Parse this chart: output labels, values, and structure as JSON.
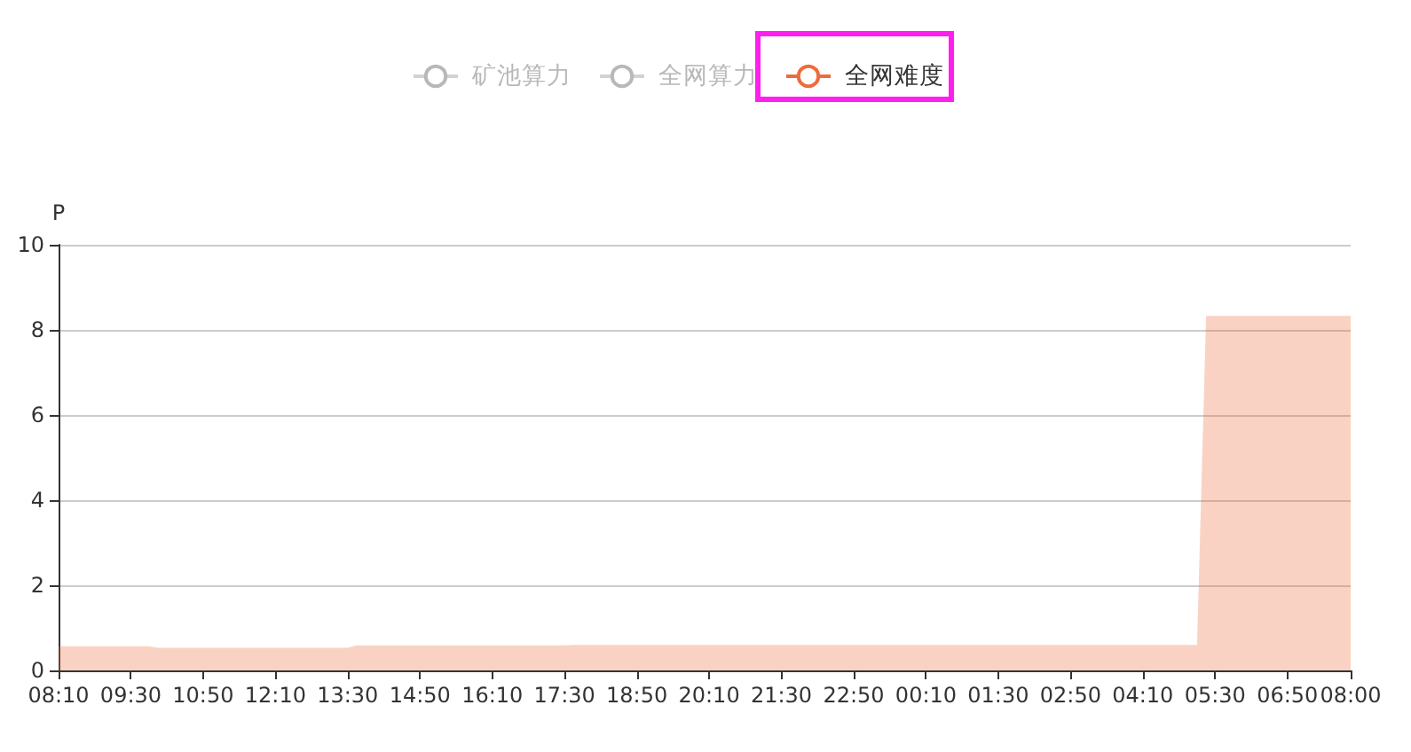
{
  "chart_data": {
    "type": "area",
    "ylabel": "P",
    "legend": "top",
    "grid": "y",
    "marker": "none",
    "categories": [
      "08:10",
      null,
      null,
      null,
      null,
      null,
      null,
      null,
      "09:30",
      null,
      null,
      null,
      null,
      null,
      null,
      null,
      "10:50",
      null,
      null,
      null,
      null,
      null,
      null,
      null,
      "12:10",
      null,
      null,
      null,
      null,
      null,
      null,
      null,
      "13:30",
      null,
      null,
      null,
      null,
      null,
      null,
      null,
      "14:50",
      null,
      null,
      null,
      null,
      null,
      null,
      null,
      "16:10",
      null,
      null,
      null,
      null,
      null,
      null,
      null,
      "17:30",
      null,
      null,
      null,
      null,
      null,
      null,
      null,
      "18:50",
      null,
      null,
      null,
      null,
      null,
      null,
      null,
      "20:10",
      null,
      null,
      null,
      null,
      null,
      null,
      null,
      "21:30",
      null,
      null,
      null,
      null,
      null,
      null,
      null,
      "22:50",
      null,
      null,
      null,
      null,
      null,
      null,
      null,
      "00:10",
      null,
      null,
      null,
      null,
      null,
      null,
      null,
      "01:30",
      null,
      null,
      null,
      null,
      null,
      null,
      null,
      "02:50",
      null,
      null,
      null,
      null,
      null,
      null,
      null,
      "04:10",
      null,
      null,
      null,
      null,
      null,
      null,
      null,
      "05:30",
      null,
      null,
      null,
      null,
      null,
      null,
      null,
      "06:50",
      null,
      null,
      null,
      null,
      null,
      null,
      "08:00"
    ],
    "ylim": [
      0,
      10
    ],
    "yticks": [
      0,
      2,
      4,
      6,
      8,
      10
    ],
    "series": [
      {
        "name": "矿池算力",
        "color": "#b8b8b8",
        "values": [
          null,
          null,
          null,
          null,
          null,
          null,
          null,
          null,
          null,
          null,
          null,
          null,
          null,
          null,
          null,
          null,
          null,
          null,
          null,
          null,
          null,
          null,
          null,
          null,
          null,
          null,
          null,
          null,
          null,
          null,
          null,
          null,
          null,
          null,
          null,
          null,
          null,
          null,
          null,
          null,
          null,
          null,
          null,
          null,
          null,
          null,
          null,
          null,
          null,
          null,
          null,
          null,
          null,
          null,
          null,
          null,
          null,
          null,
          null,
          null,
          null,
          null,
          null,
          null,
          null,
          null,
          null,
          null,
          null,
          null,
          null,
          null,
          null,
          null,
          null,
          null,
          null,
          null,
          null,
          null,
          null,
          null,
          null,
          null,
          null,
          null,
          null,
          null,
          null,
          null,
          null,
          null,
          null,
          null,
          null,
          null,
          null,
          null,
          null,
          null,
          null,
          null,
          null,
          null,
          null,
          null,
          null,
          null,
          null,
          null,
          null,
          null,
          null,
          null,
          null,
          null,
          null,
          null,
          null,
          null,
          null,
          null,
          null,
          null,
          null,
          null,
          null,
          null,
          null,
          null,
          null,
          null,
          null,
          null,
          null,
          null,
          null,
          null,
          null,
          null,
          null,
          null,
          null,
          null
        ]
      },
      {
        "name": "全网算力",
        "color": "#b8b8b8",
        "values": [
          null,
          null,
          null,
          null,
          null,
          null,
          null,
          null,
          null,
          null,
          null,
          null,
          null,
          null,
          null,
          null,
          null,
          null,
          null,
          null,
          null,
          null,
          null,
          null,
          null,
          null,
          null,
          null,
          null,
          null,
          null,
          null,
          null,
          null,
          null,
          null,
          null,
          null,
          null,
          null,
          null,
          null,
          null,
          null,
          null,
          null,
          null,
          null,
          null,
          null,
          null,
          null,
          null,
          null,
          null,
          null,
          null,
          null,
          null,
          null,
          null,
          null,
          null,
          null,
          null,
          null,
          null,
          null,
          null,
          null,
          null,
          null,
          null,
          null,
          null,
          null,
          null,
          null,
          null,
          null,
          null,
          null,
          null,
          null,
          null,
          null,
          null,
          null,
          null,
          null,
          null,
          null,
          null,
          null,
          null,
          null,
          null,
          null,
          null,
          null,
          null,
          null,
          null,
          null,
          null,
          null,
          null,
          null,
          null,
          null,
          null,
          null,
          null,
          null,
          null,
          null,
          null,
          null,
          null,
          null,
          null,
          null,
          null,
          null,
          null,
          null,
          null,
          null,
          null,
          null,
          null,
          null,
          null,
          null,
          null,
          null,
          null,
          null,
          null,
          null,
          null,
          null,
          null,
          null
        ]
      },
      {
        "name": "全网难度",
        "color": "#ef6b3a",
        "values": [
          0.57,
          0.57,
          0.57,
          0.57,
          0.57,
          0.57,
          0.57,
          0.57,
          0.57,
          0.57,
          0.57,
          0.53,
          0.53,
          0.53,
          0.53,
          0.53,
          0.53,
          0.53,
          0.53,
          0.53,
          0.53,
          0.53,
          0.53,
          0.53,
          0.53,
          0.53,
          0.53,
          0.53,
          0.53,
          0.53,
          0.53,
          0.53,
          0.53,
          0.59,
          0.59,
          0.59,
          0.59,
          0.59,
          0.59,
          0.59,
          0.59,
          0.59,
          0.59,
          0.59,
          0.59,
          0.59,
          0.59,
          0.59,
          0.59,
          0.59,
          0.59,
          0.59,
          0.59,
          0.59,
          0.59,
          0.59,
          0.59,
          0.6,
          0.6,
          0.6,
          0.6,
          0.6,
          0.6,
          0.6,
          0.6,
          0.6,
          0.6,
          0.6,
          0.6,
          0.6,
          0.6,
          0.6,
          0.6,
          0.6,
          0.6,
          0.6,
          0.6,
          0.6,
          0.6,
          0.6,
          0.6,
          0.6,
          0.6,
          0.6,
          0.6,
          0.6,
          0.6,
          0.6,
          0.6,
          0.6,
          0.6,
          0.6,
          0.6,
          0.6,
          0.6,
          0.6,
          0.6,
          0.6,
          0.6,
          0.6,
          0.6,
          0.6,
          0.6,
          0.6,
          0.6,
          0.6,
          0.6,
          0.6,
          0.6,
          0.6,
          0.6,
          0.6,
          0.6,
          0.6,
          0.6,
          0.6,
          0.6,
          0.6,
          0.6,
          0.6,
          0.6,
          0.6,
          0.6,
          0.6,
          0.6,
          0.6,
          0.6,
          8.33,
          8.33,
          8.33,
          8.33,
          8.33,
          8.33,
          8.33,
          8.33,
          8.33,
          8.33,
          8.33,
          8.33,
          8.33,
          8.33,
          8.33,
          8.33,
          8.33
        ]
      }
    ]
  }
}
